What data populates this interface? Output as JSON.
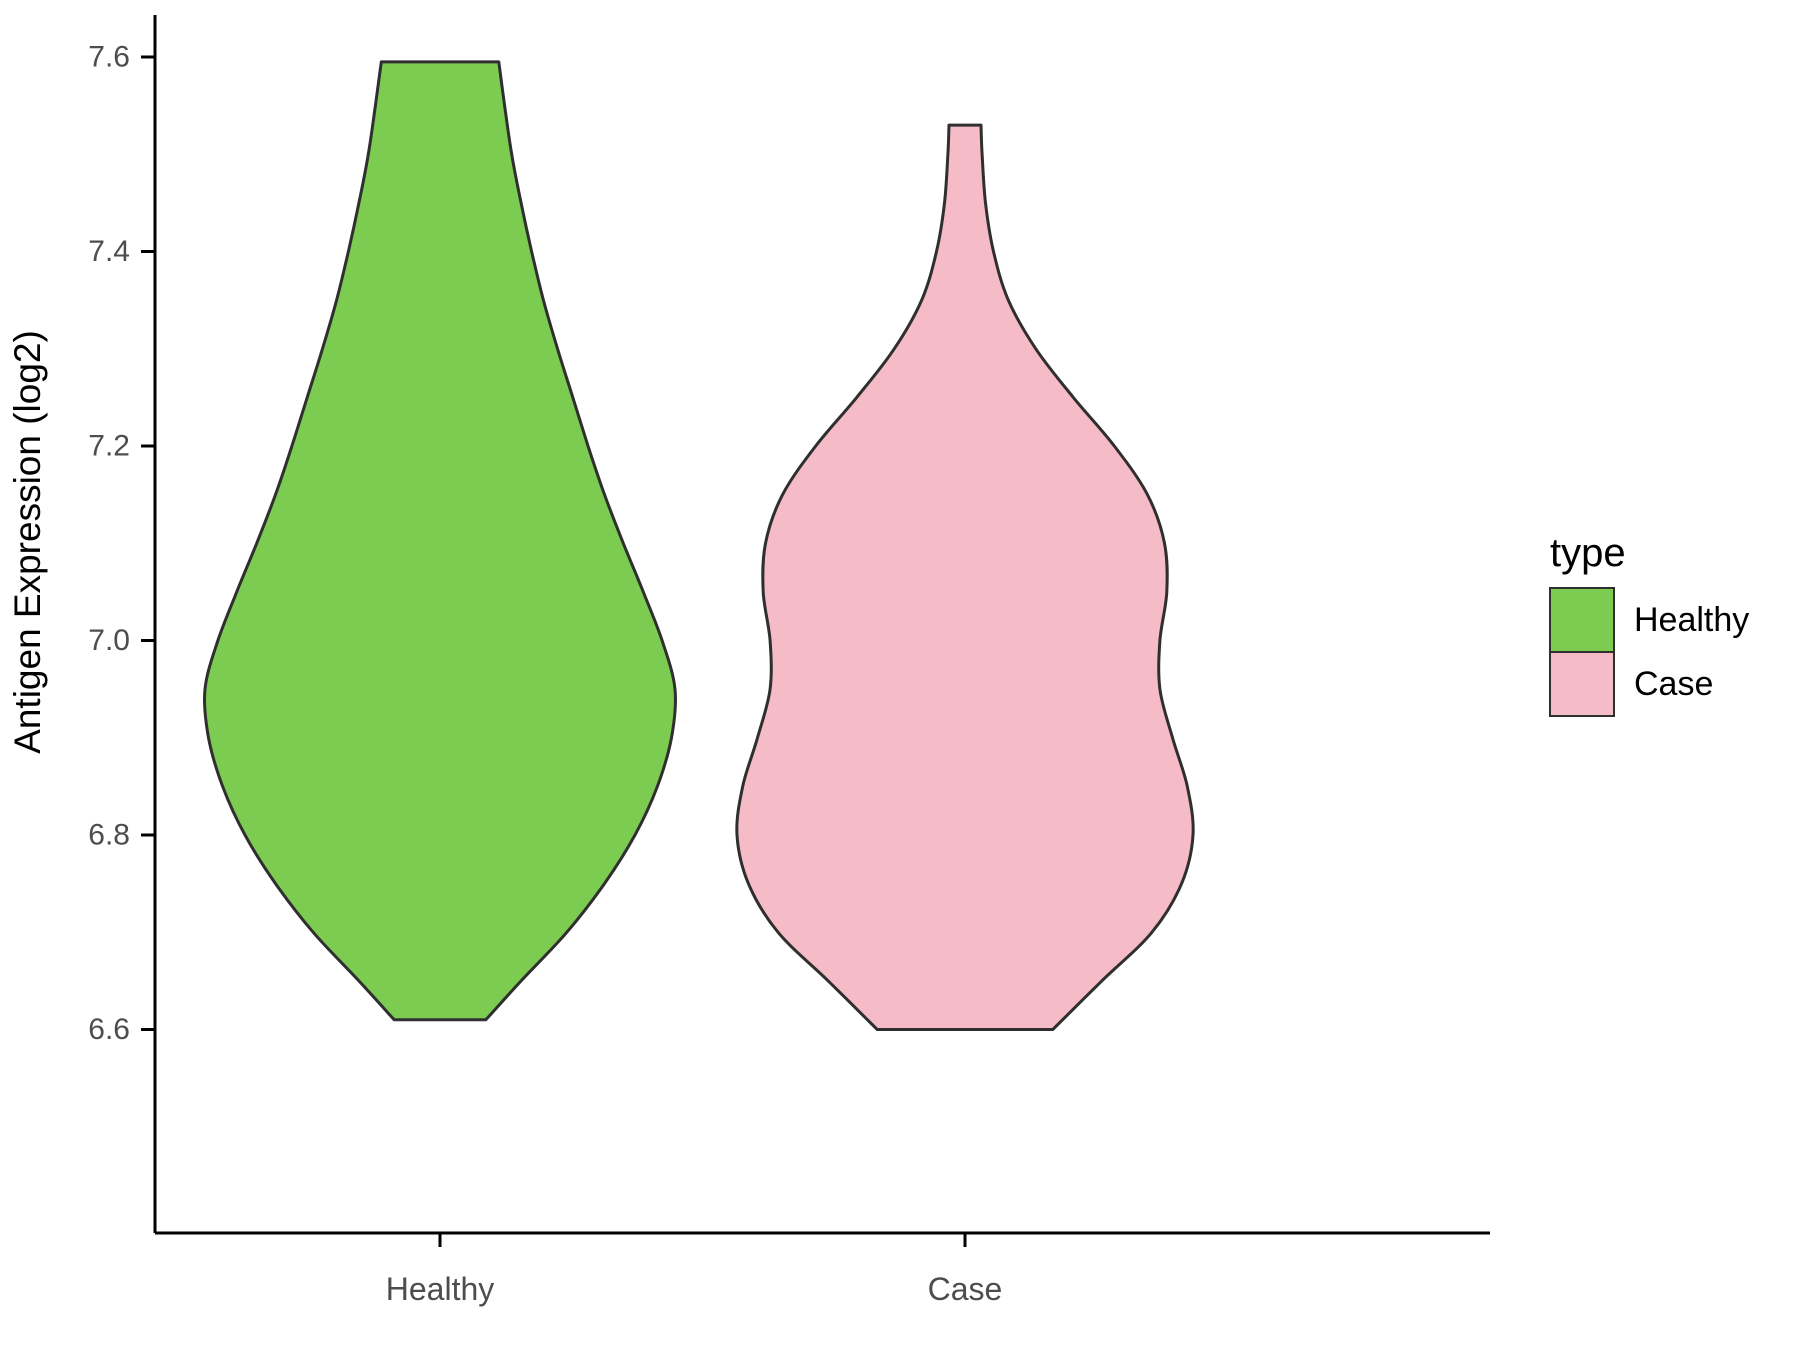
{
  "chart_data": {
    "type": "violin",
    "title": "",
    "xlabel": "",
    "ylabel": "Antigen Expression (log2)",
    "categories": [
      "Healthy",
      "Case"
    ],
    "y_ticks": [
      {
        "value": 6.6,
        "label": "6.6"
      },
      {
        "value": 6.8,
        "label": "6.8"
      },
      {
        "value": 7.0,
        "label": "7.0"
      },
      {
        "value": 7.2,
        "label": "7.2"
      },
      {
        "value": 7.4,
        "label": "7.4"
      },
      {
        "value": 7.6,
        "label": "7.6"
      }
    ],
    "ylim": [
      6.39,
      7.64
    ],
    "grid": false,
    "legend": {
      "title": "type",
      "position": "right",
      "entries": [
        {
          "label": "Healthy",
          "color": "#7CCC52"
        },
        {
          "label": "Case",
          "color": "#F5BCC8"
        }
      ]
    },
    "style": {
      "stroke_color": "#2F2F2F",
      "axis_color": "#000000",
      "tick_text_color": "#4D4D4D",
      "background": "#ffffff"
    },
    "series": [
      {
        "name": "Healthy",
        "color": "#7CCC52",
        "value_range": [
          6.61,
          7.595
        ],
        "peak_value": 6.95,
        "profile": [
          [
            7.595,
            0.25
          ],
          [
            7.55,
            0.275
          ],
          [
            7.5,
            0.305
          ],
          [
            7.45,
            0.345
          ],
          [
            7.4,
            0.39
          ],
          [
            7.35,
            0.44
          ],
          [
            7.3,
            0.5
          ],
          [
            7.25,
            0.565
          ],
          [
            7.2,
            0.63
          ],
          [
            7.15,
            0.7
          ],
          [
            7.1,
            0.78
          ],
          [
            7.05,
            0.865
          ],
          [
            7.0,
            0.945
          ],
          [
            6.95,
            1.0
          ],
          [
            6.9,
            0.985
          ],
          [
            6.85,
            0.925
          ],
          [
            6.8,
            0.83
          ],
          [
            6.75,
            0.7
          ],
          [
            6.7,
            0.54
          ],
          [
            6.65,
            0.345
          ],
          [
            6.61,
            0.195
          ]
        ]
      },
      {
        "name": "Case",
        "color": "#F5BCC8",
        "value_range": [
          6.6,
          7.53
        ],
        "peak_value": 6.8,
        "profile": [
          [
            7.53,
            0.07
          ],
          [
            7.5,
            0.075
          ],
          [
            7.45,
            0.09
          ],
          [
            7.4,
            0.125
          ],
          [
            7.35,
            0.19
          ],
          [
            7.3,
            0.31
          ],
          [
            7.25,
            0.475
          ],
          [
            7.2,
            0.655
          ],
          [
            7.15,
            0.8
          ],
          [
            7.1,
            0.875
          ],
          [
            7.05,
            0.885
          ],
          [
            7.0,
            0.855
          ],
          [
            6.95,
            0.855
          ],
          [
            6.9,
            0.91
          ],
          [
            6.85,
            0.975
          ],
          [
            6.8,
            1.0
          ],
          [
            6.75,
            0.95
          ],
          [
            6.7,
            0.82
          ],
          [
            6.65,
            0.6
          ],
          [
            6.6,
            0.385
          ]
        ]
      }
    ]
  }
}
